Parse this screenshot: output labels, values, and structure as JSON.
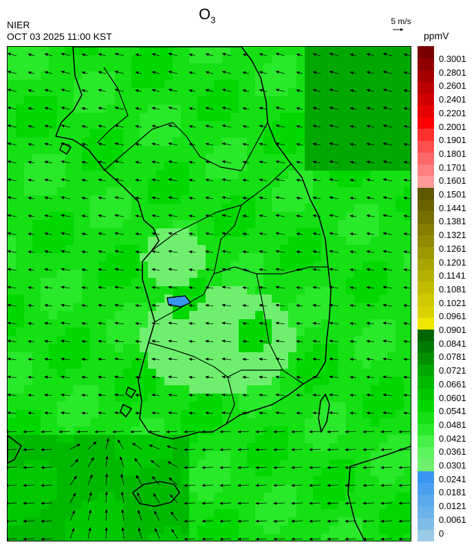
{
  "header": {
    "title_main": "O",
    "title_sub": "3",
    "agency": "NIER",
    "timestamp": "OCT 03 2025 11:00 KST",
    "reference_vector": "5 m/s",
    "unit": "ppmV"
  },
  "legend": {
    "colors": [
      "#9ccbe8",
      "#7fbce8",
      "#6ab2ea",
      "#5aa9ec",
      "#4aa0ee",
      "#3896f0",
      "#6ef06e",
      "#5df55d",
      "#47f047",
      "#2ae82a",
      "#14e014",
      "#00d800",
      "#00c800",
      "#00b800",
      "#00a800",
      "#009000",
      "#007c00",
      "#006600",
      "#f0e600",
      "#d9d200",
      "#cdc800",
      "#c2bc00",
      "#b5b000",
      "#a9a400",
      "#9c9600",
      "#908a00",
      "#847d00",
      "#777000",
      "#6a6300",
      "#5e5600",
      "#ff9a9a",
      "#ff8080",
      "#ff6868",
      "#ff5050",
      "#ff3030",
      "#ff0000",
      "#e60000",
      "#d20000",
      "#bc0000",
      "#a60000",
      "#900000",
      "#780000"
    ],
    "ticks": [
      "0.3001",
      "0.2801",
      "0.2601",
      "0.2401",
      "0.2201",
      "0.2001",
      "0.1901",
      "0.1801",
      "0.1701",
      "0.1601",
      "0.1501",
      "0.1441",
      "0.1381",
      "0.1321",
      "0.1261",
      "0.1201",
      "0.1141",
      "0.1081",
      "0.1021",
      "0.0961",
      "0.0901",
      "0.0841",
      "0.0781",
      "0.0721",
      "0.0661",
      "0.0601",
      "0.0541",
      "0.0481",
      "0.0421",
      "0.0361",
      "0.0301",
      "0.0241",
      "0.0181",
      "0.0121",
      "0.0061",
      "0"
    ]
  }
}
